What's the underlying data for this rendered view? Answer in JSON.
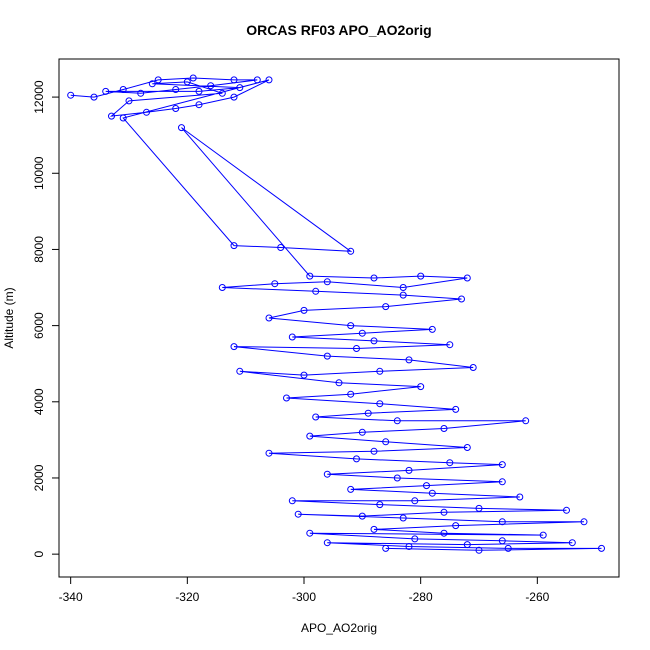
{
  "chart_data": {
    "type": "scatter",
    "title": "ORCAS RF03 APO_AO2orig",
    "xlabel": "APO_AO2orig",
    "ylabel": "Altitude (m)",
    "xlim": [
      -342,
      -246
    ],
    "ylim": [
      -600,
      13000
    ],
    "xticks": [
      -340,
      -320,
      -300,
      -280,
      -260
    ],
    "yticks": [
      0,
      2000,
      4000,
      6000,
      8000,
      10000,
      12000
    ],
    "series_color": "#0000ff",
    "marker": "open-circle",
    "connected": true,
    "grid": false,
    "legend": "none",
    "series": [
      {
        "points": [
          [
            -340,
            12050
          ],
          [
            -336,
            12000
          ],
          [
            -331,
            12200
          ],
          [
            -325,
            12450
          ],
          [
            -319,
            12500
          ],
          [
            -312,
            12450
          ],
          [
            -308,
            12450
          ],
          [
            -316,
            12300
          ],
          [
            -322,
            12200
          ],
          [
            -328,
            12100
          ],
          [
            -334,
            12150
          ],
          [
            -318,
            12150
          ],
          [
            -311,
            12250
          ],
          [
            -326,
            12350
          ],
          [
            -320,
            12400
          ],
          [
            -314,
            12100
          ],
          [
            -330,
            11900
          ],
          [
            -333,
            11500
          ],
          [
            -327,
            11600
          ],
          [
            -322,
            11700
          ],
          [
            -318,
            11800
          ],
          [
            -312,
            12000
          ],
          [
            -306,
            12450
          ],
          [
            -331,
            11450
          ],
          [
            -312,
            8100
          ],
          [
            -304,
            8050
          ],
          [
            -292,
            7950
          ],
          [
            -321,
            11200
          ],
          [
            -299,
            7300
          ],
          [
            -288,
            7250
          ],
          [
            -280,
            7300
          ],
          [
            -272,
            7250
          ],
          [
            -283,
            7000
          ],
          [
            -296,
            7150
          ],
          [
            -305,
            7100
          ],
          [
            -314,
            7000
          ],
          [
            -298,
            6900
          ],
          [
            -283,
            6800
          ],
          [
            -273,
            6700
          ],
          [
            -286,
            6500
          ],
          [
            -300,
            6400
          ],
          [
            -306,
            6200
          ],
          [
            -292,
            6000
          ],
          [
            -278,
            5900
          ],
          [
            -290,
            5800
          ],
          [
            -302,
            5700
          ],
          [
            -288,
            5600
          ],
          [
            -275,
            5500
          ],
          [
            -291,
            5400
          ],
          [
            -312,
            5450
          ],
          [
            -296,
            5200
          ],
          [
            -282,
            5100
          ],
          [
            -271,
            4900
          ],
          [
            -287,
            4800
          ],
          [
            -300,
            4700
          ],
          [
            -311,
            4800
          ],
          [
            -294,
            4500
          ],
          [
            -280,
            4400
          ],
          [
            -292,
            4200
          ],
          [
            -303,
            4100
          ],
          [
            -287,
            3950
          ],
          [
            -274,
            3800
          ],
          [
            -289,
            3700
          ],
          [
            -298,
            3600
          ],
          [
            -284,
            3500
          ],
          [
            -262,
            3500
          ],
          [
            -276,
            3300
          ],
          [
            -290,
            3200
          ],
          [
            -299,
            3100
          ],
          [
            -286,
            2950
          ],
          [
            -272,
            2800
          ],
          [
            -288,
            2700
          ],
          [
            -306,
            2650
          ],
          [
            -291,
            2500
          ],
          [
            -275,
            2400
          ],
          [
            -266,
            2350
          ],
          [
            -282,
            2200
          ],
          [
            -296,
            2100
          ],
          [
            -284,
            2000
          ],
          [
            -266,
            1900
          ],
          [
            -279,
            1800
          ],
          [
            -292,
            1700
          ],
          [
            -278,
            1600
          ],
          [
            -263,
            1500
          ],
          [
            -281,
            1400
          ],
          [
            -302,
            1400
          ],
          [
            -287,
            1300
          ],
          [
            -270,
            1200
          ],
          [
            -255,
            1150
          ],
          [
            -276,
            1100
          ],
          [
            -290,
            1000
          ],
          [
            -301,
            1050
          ],
          [
            -283,
            950
          ],
          [
            -266,
            850
          ],
          [
            -252,
            850
          ],
          [
            -274,
            750
          ],
          [
            -288,
            650
          ],
          [
            -276,
            550
          ],
          [
            -259,
            500
          ],
          [
            -299,
            550
          ],
          [
            -281,
            400
          ],
          [
            -266,
            350
          ],
          [
            -254,
            300
          ],
          [
            -272,
            250
          ],
          [
            -296,
            300
          ],
          [
            -282,
            200
          ],
          [
            -265,
            150
          ],
          [
            -249,
            150
          ],
          [
            -270,
            100
          ],
          [
            -286,
            150
          ]
        ]
      }
    ]
  }
}
